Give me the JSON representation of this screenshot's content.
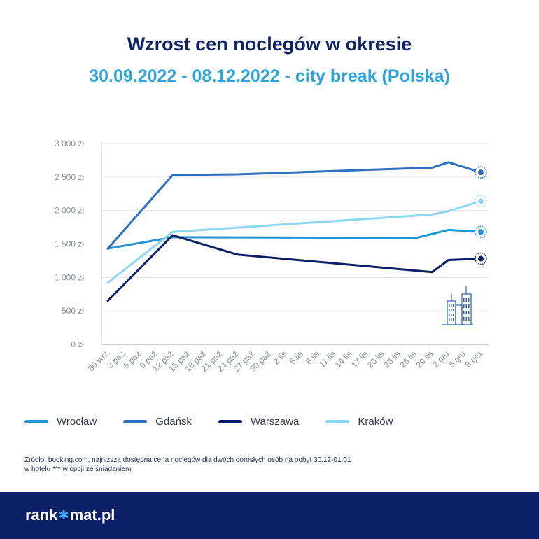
{
  "header": {
    "title": "Wzrost cen noclegów w okresie",
    "subtitle": "30.09.2022 - 08.12.2022 - city break (Polska)"
  },
  "legend": [
    {
      "label": "Wrocław",
      "color": "#2196d3"
    },
    {
      "label": "Gdańsk",
      "color": "#2f6fbf"
    },
    {
      "label": "Warszawa",
      "color": "#0c1f66"
    },
    {
      "label": "Kraków",
      "color": "#8fd6f5"
    }
  ],
  "source": {
    "line1": "Źródło: booking.com, najniższa dostępna cena noclegów dla dwóch dorosłych osób na pobyt 30.12-01.01",
    "line2": "w hotelu *** w opcji ze śniadaniem"
  },
  "footer": {
    "brand_left": "rank",
    "brand_star": "✱",
    "brand_right": "mat.pl"
  },
  "chart_data": {
    "type": "line",
    "categories": [
      "30 wrz.",
      "3 paź.",
      "6 paź.",
      "9 paź.",
      "12 paź.",
      "15 paź.",
      "18 paź.",
      "21 paź.",
      "24 paź.",
      "27 paź.",
      "30 paź.",
      "2 lis.",
      "5 lis.",
      "8 lis.",
      "11 lis.",
      "14 lis.",
      "17 lis.",
      "20 lis.",
      "23 lis.",
      "26 lis.",
      "29 lis.",
      "2 gru.",
      "5 gru.",
      "8 gru."
    ],
    "y_ticks": [
      "0 zł",
      "500 zł",
      "1 000 zł",
      "1 500 zł",
      "2 000 zł",
      "2 500 zł",
      "3 000 zł"
    ],
    "ylim": [
      0,
      3000
    ],
    "grid": "horizontal",
    "legend_position": "bottom",
    "series": [
      {
        "name": "Wrocław",
        "color": "#2196d3",
        "points": [
          [
            0,
            1430
          ],
          [
            4,
            1600
          ],
          [
            19,
            1590
          ],
          [
            21,
            1710
          ],
          [
            23,
            1680
          ]
        ]
      },
      {
        "name": "Gdańsk",
        "color": "#2f6fbf",
        "points": [
          [
            0,
            1430
          ],
          [
            4,
            2530
          ],
          [
            8,
            2540
          ],
          [
            20,
            2640
          ],
          [
            21,
            2720
          ],
          [
            23,
            2570
          ]
        ]
      },
      {
        "name": "Warszawa",
        "color": "#0c1f66",
        "points": [
          [
            0,
            650
          ],
          [
            4,
            1630
          ],
          [
            8,
            1340
          ],
          [
            20,
            1080
          ],
          [
            21,
            1260
          ],
          [
            23,
            1280
          ]
        ]
      },
      {
        "name": "Kraków",
        "color": "#8fd6f5",
        "points": [
          [
            0,
            920
          ],
          [
            4,
            1680
          ],
          [
            20,
            1940
          ],
          [
            21,
            1990
          ],
          [
            23,
            2140
          ]
        ]
      }
    ]
  }
}
